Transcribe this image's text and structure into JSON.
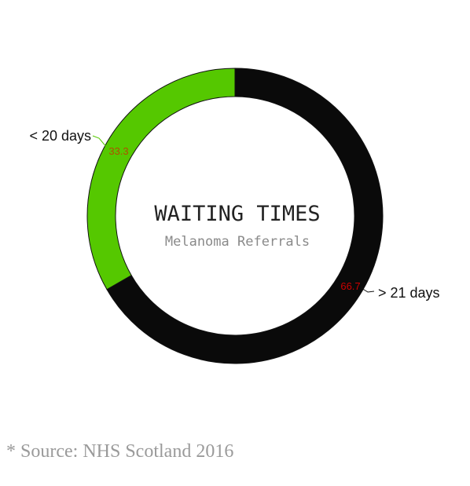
{
  "chart_data": {
    "type": "pie",
    "variant": "donut",
    "title": "WAITING TIMES",
    "subtitle": "Melanoma Referrals",
    "slices": [
      {
        "label": "< 20 days",
        "value": 33.3,
        "value_label": "33.3",
        "color": "#55c800",
        "value_color": "#b05000"
      },
      {
        "label": "> 21 days",
        "value": 66.7,
        "value_label": "66.7",
        "color": "#0a0a0a",
        "value_color": "#cc0000"
      }
    ]
  },
  "footer": {
    "source": "* Source: NHS Scotland 2016"
  }
}
